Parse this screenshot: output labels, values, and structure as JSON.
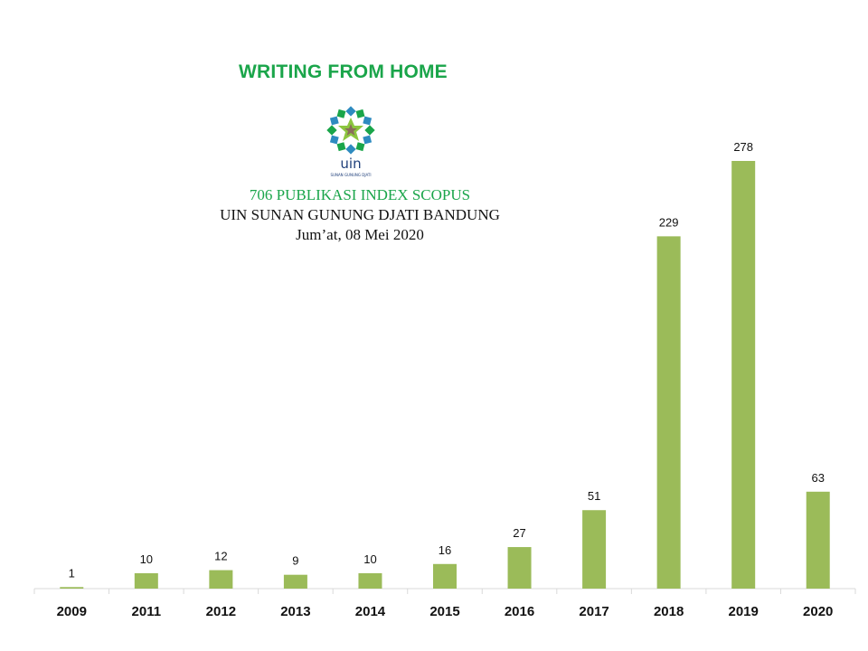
{
  "header": {
    "headline": "WRITING FROM HOME",
    "line1": "706 PUBLIKASI INDEX SCOPUS",
    "line2": "UIN SUNAN GUNUNG DJATI BANDUNG",
    "line3": "Jum’at, 08 Mei 2020"
  },
  "logo": {
    "text": "uin",
    "caption": "SUNAN GUNUNG DJATI",
    "icon": "uin-star-ornament-logo"
  },
  "colors": {
    "headline": "#1aa54a",
    "bar": "#9bbb59",
    "axis": "#d9d9d9",
    "label": "#111111"
  },
  "chart_data": {
    "type": "bar",
    "categories": [
      "2009",
      "2011",
      "2012",
      "2013",
      "2014",
      "2015",
      "2016",
      "2017",
      "2018",
      "2019",
      "2020"
    ],
    "values": [
      1,
      10,
      12,
      9,
      10,
      16,
      27,
      51,
      229,
      278,
      63
    ],
    "title": "",
    "xlabel": "",
    "ylabel": "",
    "ylim": [
      0,
      300
    ],
    "grid": false,
    "legend": "none",
    "data_labels": true
  }
}
